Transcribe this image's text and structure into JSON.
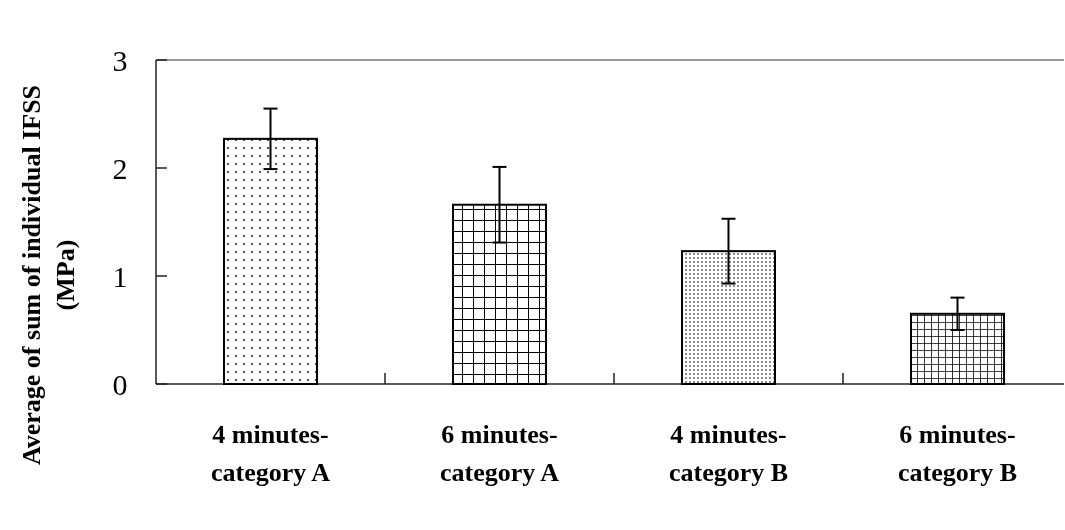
{
  "chart_data": {
    "type": "bar",
    "ylabel": "Average of sum of individual IFSS\n(MPa)",
    "categories": [
      "4 minutes-\ncategory A",
      "6 minutes-\ncategory A",
      "4 minutes-\ncategory B",
      "6 minutes-\ncategory B"
    ],
    "values": [
      2.27,
      1.66,
      1.23,
      0.65
    ],
    "errors": [
      0.28,
      0.35,
      0.3,
      0.15
    ],
    "color": "#000000",
    "ylim": [
      0,
      3
    ],
    "yticks": [
      0,
      1,
      2,
      3
    ],
    "grid": false
  }
}
